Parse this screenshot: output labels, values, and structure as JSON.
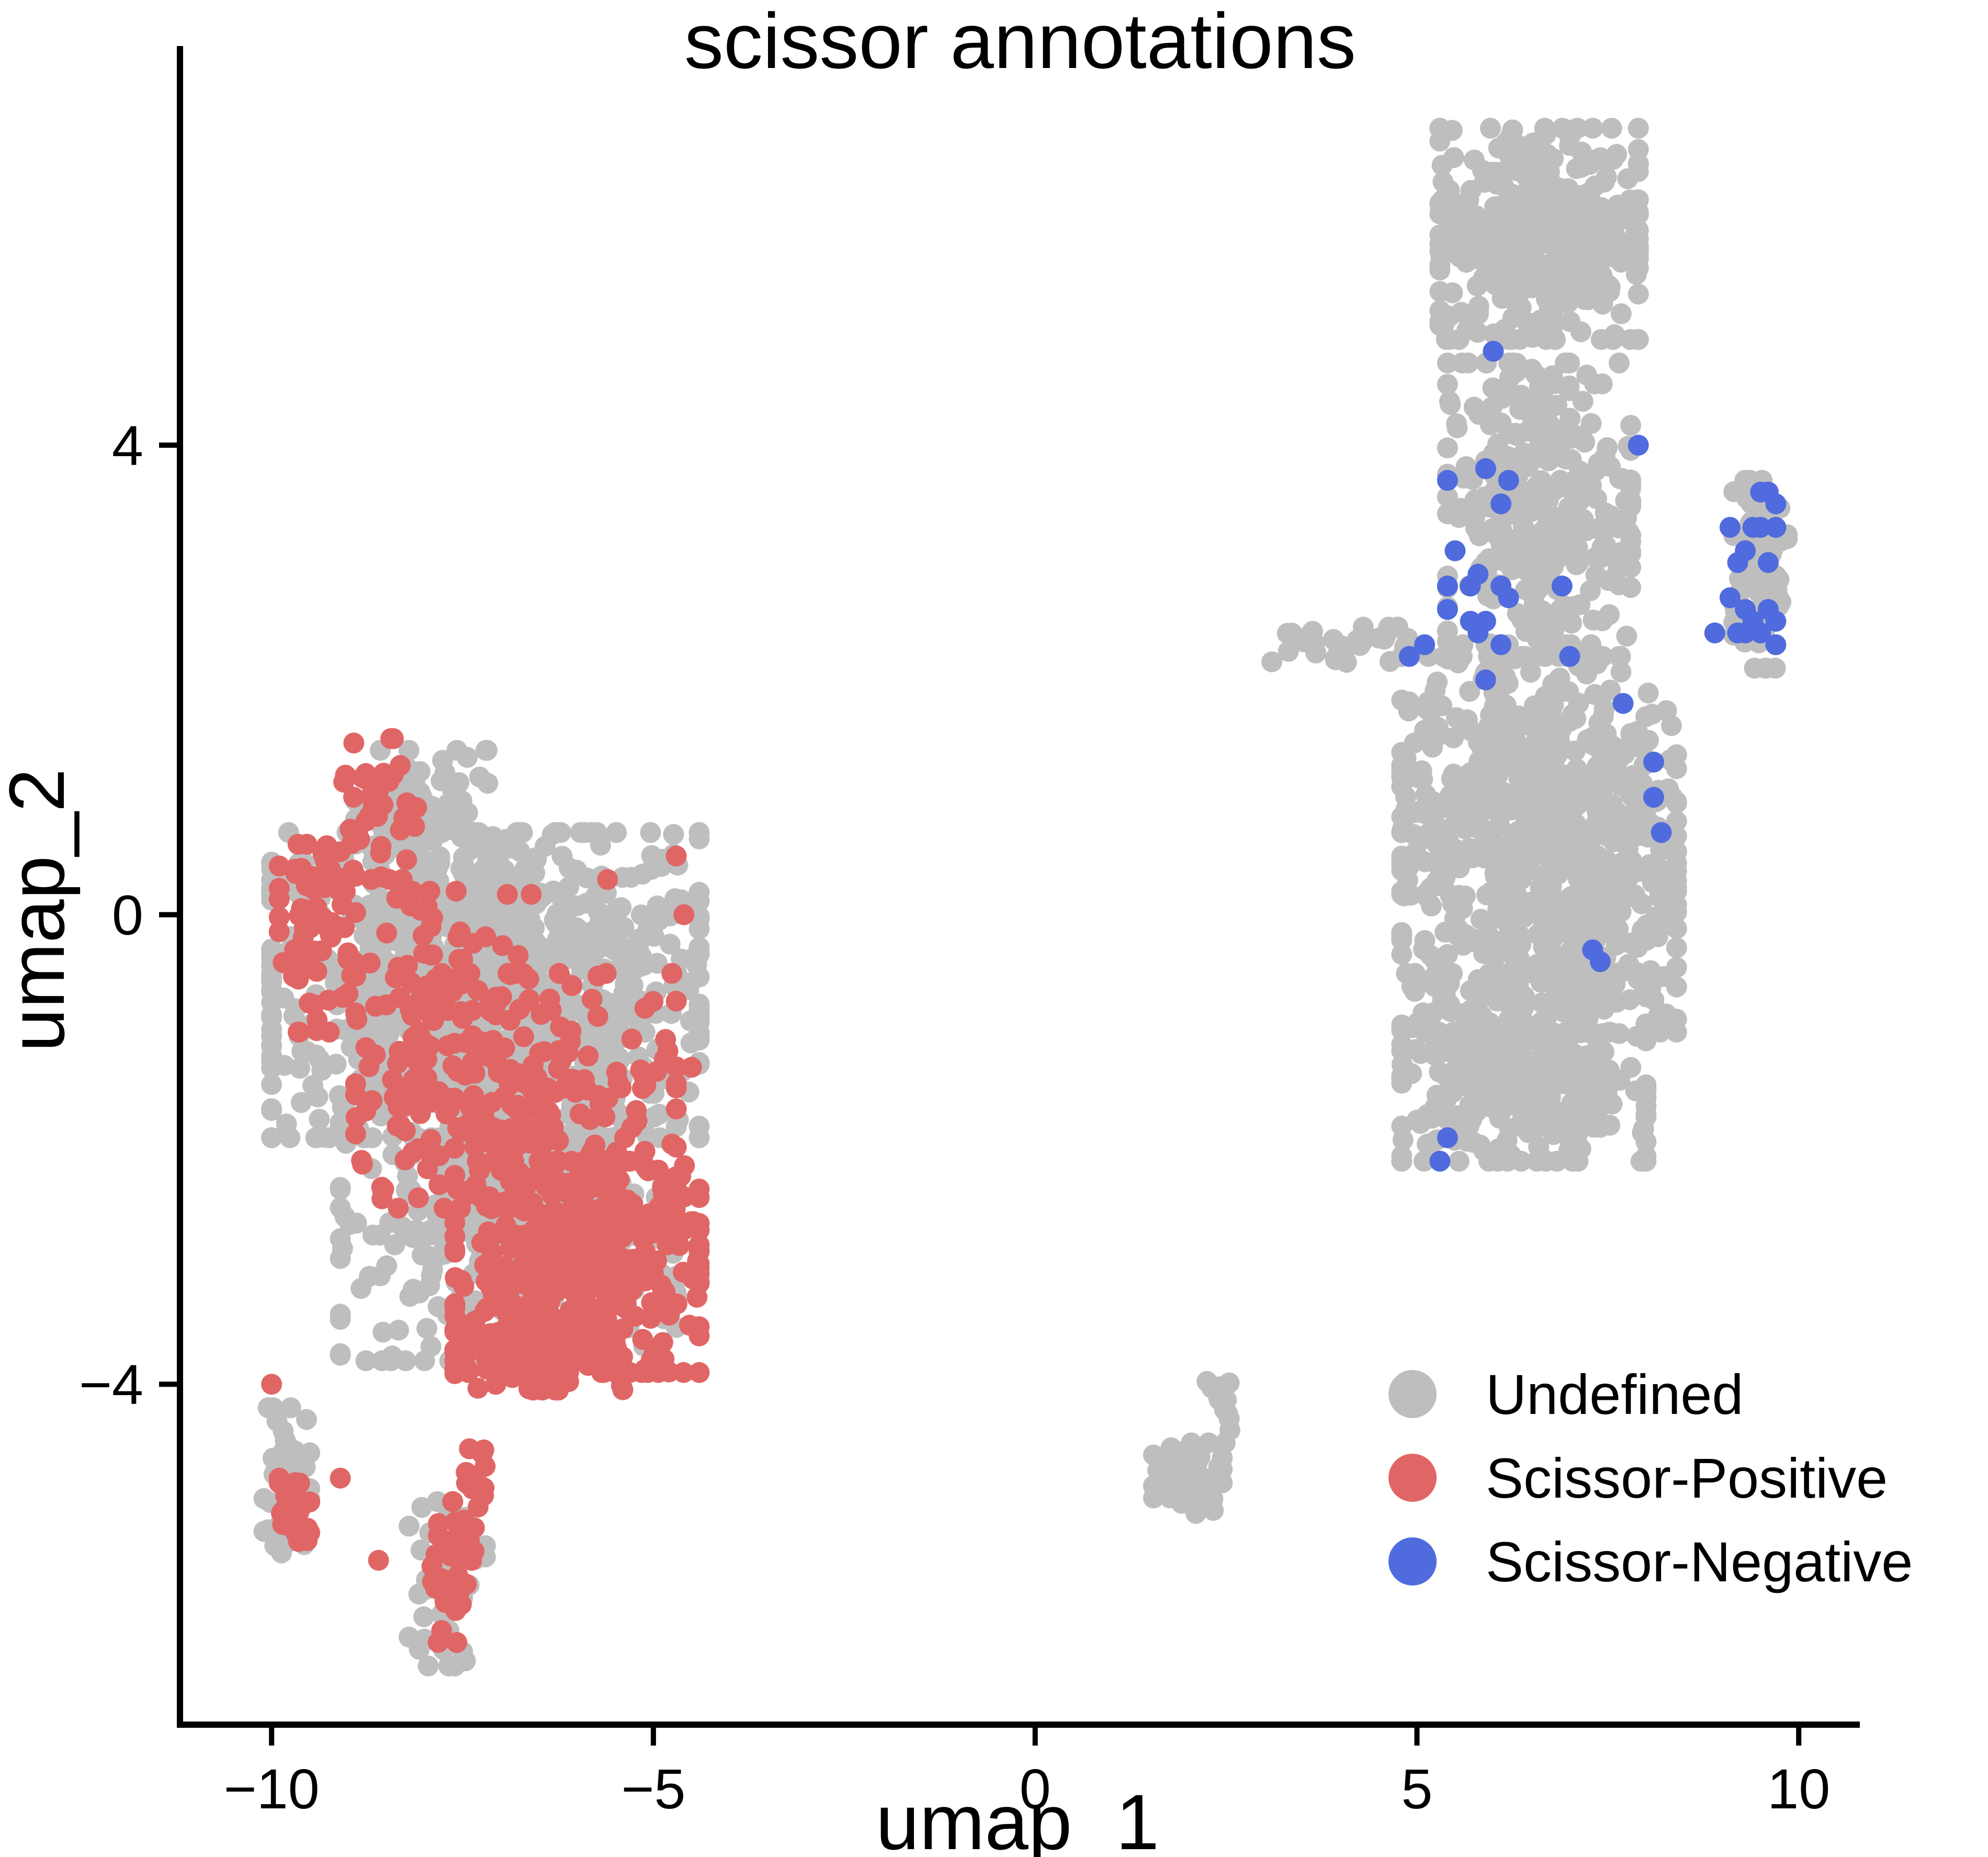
{
  "chart_data": {
    "type": "scatter",
    "title": "scissor annotations",
    "xlabel": "umap_1",
    "ylabel": "umap_2",
    "xlim": [
      -11.2,
      10.8
    ],
    "ylim": [
      -6.9,
      7.4
    ],
    "xticks": [
      {
        "value": -10,
        "label": "−10"
      },
      {
        "value": -5,
        "label": "−5"
      },
      {
        "value": 0,
        "label": "0"
      },
      {
        "value": 5,
        "label": "5"
      },
      {
        "value": 10,
        "label": "10"
      }
    ],
    "yticks": [
      {
        "value": -4,
        "label": "−4"
      },
      {
        "value": 0,
        "label": "0"
      },
      {
        "value": 4,
        "label": "4"
      }
    ],
    "legend_position": "bottom-right",
    "series": [
      {
        "name": "Undefined",
        "color": "#BEBEBE",
        "clusters": [
          {
            "cx": -7.2,
            "cy": -0.6,
            "rx": 2.8,
            "ry": 1.3,
            "n": 900
          },
          {
            "cx": -6.9,
            "cy": -2.6,
            "rx": 2.2,
            "ry": 1.2,
            "n": 350
          },
          {
            "cx": -8.0,
            "cy": 0.8,
            "rx": 0.9,
            "ry": 0.6,
            "n": 80
          },
          {
            "cx": -9.8,
            "cy": -4.9,
            "rx": 0.3,
            "ry": 0.7,
            "n": 50
          },
          {
            "cx": -7.7,
            "cy": -5.7,
            "rx": 0.5,
            "ry": 0.7,
            "n": 40
          },
          {
            "cx": 6.6,
            "cy": 5.8,
            "rx": 1.3,
            "ry": 0.9,
            "n": 420
          },
          {
            "cx": 6.6,
            "cy": 3.5,
            "rx": 1.2,
            "ry": 1.2,
            "n": 300
          },
          {
            "cx": 6.6,
            "cy": 0.6,
            "rx": 1.8,
            "ry": 1.6,
            "n": 800
          },
          {
            "cx": 6.4,
            "cy": -1.3,
            "rx": 1.6,
            "ry": 0.8,
            "n": 380
          },
          {
            "cx": 9.5,
            "cy": 2.9,
            "rx": 0.35,
            "ry": 0.8,
            "n": 90
          },
          {
            "cx": 2.0,
            "cy": -4.8,
            "rx": 0.45,
            "ry": 0.3,
            "n": 60
          },
          {
            "cx": 2.4,
            "cy": -4.2,
            "rx": 0.15,
            "ry": 0.3,
            "n": 12
          },
          {
            "cx": 4.0,
            "cy": 2.3,
            "rx": 0.9,
            "ry": 0.15,
            "n": 30
          }
        ],
        "points": []
      },
      {
        "name": "Scissor-Positive",
        "color": "#E06666",
        "clusters": [
          {
            "cx": -9.4,
            "cy": -0.2,
            "rx": 0.5,
            "ry": 0.8,
            "n": 70
          },
          {
            "cx": -8.6,
            "cy": 0.9,
            "rx": 0.5,
            "ry": 0.6,
            "n": 40
          },
          {
            "cx": -6.8,
            "cy": -1.5,
            "rx": 2.1,
            "ry": 1.0,
            "n": 280
          },
          {
            "cx": -6.0,
            "cy": -3.0,
            "rx": 1.6,
            "ry": 0.9,
            "n": 420
          },
          {
            "cx": -6.5,
            "cy": -3.7,
            "rx": 1.1,
            "ry": 0.35,
            "n": 120
          },
          {
            "cx": -7.8,
            "cy": -0.4,
            "rx": 1.2,
            "ry": 0.6,
            "n": 60
          },
          {
            "cx": -9.7,
            "cy": -5.1,
            "rx": 0.2,
            "ry": 0.3,
            "n": 30
          },
          {
            "cx": -7.6,
            "cy": -5.6,
            "rx": 0.3,
            "ry": 0.6,
            "n": 45
          },
          {
            "cx": -7.3,
            "cy": -4.9,
            "rx": 0.2,
            "ry": 0.35,
            "n": 14
          }
        ],
        "points": [
          {
            "x": -10.0,
            "y": -4.0
          },
          {
            "x": -9.9,
            "y": -4.8
          },
          {
            "x": -9.1,
            "y": -4.8
          },
          {
            "x": -8.6,
            "y": -5.5
          },
          {
            "x": -4.6,
            "y": 0.0
          },
          {
            "x": -4.7,
            "y": 0.5
          },
          {
            "x": -5.6,
            "y": 0.3
          },
          {
            "x": -4.5,
            "y": -1.3
          }
        ]
      },
      {
        "name": "Scissor-Negative",
        "color": "#4F6BDD",
        "clusters": [],
        "points": [
          {
            "x": 6.0,
            "y": 4.8
          },
          {
            "x": 7.9,
            "y": 4.0
          },
          {
            "x": 5.4,
            "y": 3.7
          },
          {
            "x": 5.9,
            "y": 3.8
          },
          {
            "x": 6.2,
            "y": 3.7
          },
          {
            "x": 6.1,
            "y": 3.5
          },
          {
            "x": 5.5,
            "y": 3.1
          },
          {
            "x": 5.4,
            "y": 2.8
          },
          {
            "x": 5.7,
            "y": 2.8
          },
          {
            "x": 5.8,
            "y": 2.9
          },
          {
            "x": 6.1,
            "y": 2.8
          },
          {
            "x": 6.2,
            "y": 2.7
          },
          {
            "x": 6.9,
            "y": 2.8
          },
          {
            "x": 5.4,
            "y": 2.6
          },
          {
            "x": 5.7,
            "y": 2.5
          },
          {
            "x": 5.8,
            "y": 2.4
          },
          {
            "x": 5.9,
            "y": 2.5
          },
          {
            "x": 6.1,
            "y": 2.3
          },
          {
            "x": 5.1,
            "y": 2.3
          },
          {
            "x": 4.9,
            "y": 2.2
          },
          {
            "x": 7.0,
            "y": 2.2
          },
          {
            "x": 5.9,
            "y": 2.0
          },
          {
            "x": 7.7,
            "y": 1.8
          },
          {
            "x": 8.1,
            "y": 1.3
          },
          {
            "x": 8.1,
            "y": 1.0
          },
          {
            "x": 8.2,
            "y": 0.7
          },
          {
            "x": 7.3,
            "y": -0.3
          },
          {
            "x": 7.4,
            "y": -0.4
          },
          {
            "x": 5.4,
            "y": -1.9
          },
          {
            "x": 5.3,
            "y": -2.1
          },
          {
            "x": 9.5,
            "y": 3.6
          },
          {
            "x": 9.6,
            "y": 3.6
          },
          {
            "x": 9.7,
            "y": 3.5
          },
          {
            "x": 9.1,
            "y": 3.3
          },
          {
            "x": 9.4,
            "y": 3.3
          },
          {
            "x": 9.5,
            "y": 3.3
          },
          {
            "x": 9.7,
            "y": 3.3
          },
          {
            "x": 9.3,
            "y": 3.1
          },
          {
            "x": 9.2,
            "y": 3.0
          },
          {
            "x": 9.6,
            "y": 3.0
          },
          {
            "x": 9.1,
            "y": 2.7
          },
          {
            "x": 9.3,
            "y": 2.6
          },
          {
            "x": 9.6,
            "y": 2.6
          },
          {
            "x": 9.7,
            "y": 2.5
          },
          {
            "x": 8.9,
            "y": 2.4
          },
          {
            "x": 9.2,
            "y": 2.4
          },
          {
            "x": 9.3,
            "y": 2.4
          },
          {
            "x": 9.5,
            "y": 2.4
          },
          {
            "x": 9.7,
            "y": 2.3
          },
          {
            "x": 9.4,
            "y": 2.5
          }
        ]
      }
    ]
  }
}
